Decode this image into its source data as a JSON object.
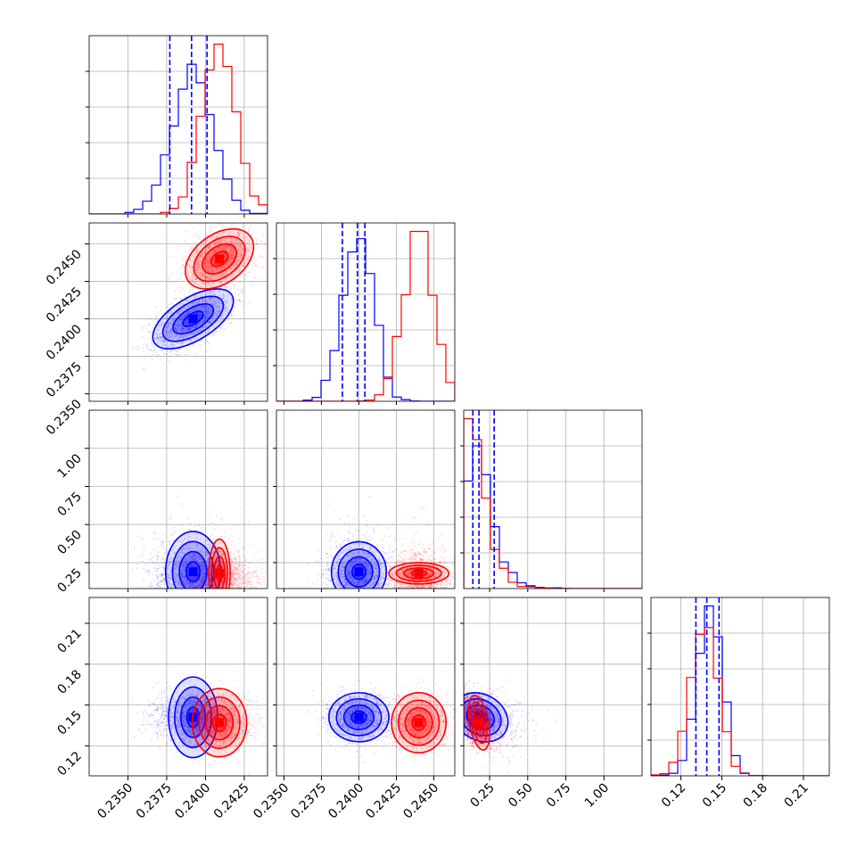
{
  "chart_data": {
    "type": "corner",
    "parameters": [
      {
        "ticks": [
          "0.2350",
          "0.2375",
          "0.2400",
          "0.2425"
        ],
        "tick_values": [
          0.235,
          0.2375,
          0.24,
          0.2425
        ],
        "range": [
          0.2325,
          0.244
        ]
      },
      {
        "ticks": [
          "0.2350",
          "0.2375",
          "0.2400",
          "0.2425",
          "0.2450"
        ],
        "tick_values": [
          0.235,
          0.2375,
          0.24,
          0.2425,
          0.245
        ],
        "range": [
          0.2345,
          0.2464
        ]
      },
      {
        "ticks": [
          "0.25",
          "0.50",
          "0.75",
          "1.00"
        ],
        "tick_values": [
          0.25,
          0.5,
          0.75,
          1.0
        ],
        "range": [
          0.08,
          1.25
        ]
      },
      {
        "ticks": [
          "0.12",
          "0.15",
          "0.18",
          "0.21"
        ],
        "tick_values": [
          0.12,
          0.15,
          0.18,
          0.21
        ],
        "range": [
          0.098,
          0.229
        ]
      }
    ],
    "series": [
      {
        "color": "#0000ff",
        "means": [
          0.2392,
          0.24,
          0.19,
          0.141
        ],
        "sds": [
          0.0013,
          0.001,
          0.09,
          0.009
        ],
        "corr": [
          [
            1,
            0.6,
            0,
            0
          ],
          [
            0.6,
            1,
            0,
            0
          ],
          [
            0,
            0,
            1,
            -0.2
          ],
          [
            0,
            0,
            -0.2,
            1
          ]
        ],
        "quantiles": [
          [
            0.2377,
            0.2391,
            0.2401
          ],
          [
            0.2389,
            0.2399,
            0.2404
          ],
          [
            0.14,
            0.18,
            0.28
          ],
          [
            0.131,
            0.139,
            0.148
          ]
        ]
      },
      {
        "color": "#ff0000",
        "means": [
          0.2409,
          0.244,
          0.18,
          0.137
        ],
        "sds": [
          0.0011,
          0.001,
          0.035,
          0.01
        ],
        "corr": [
          [
            1,
            0.4,
            0,
            0
          ],
          [
            0.4,
            1,
            0,
            0
          ],
          [
            0,
            0,
            1,
            -0.4
          ],
          [
            0,
            0,
            -0.4,
            1
          ]
        ]
      }
    ],
    "quantile_line_color": "#0000ff",
    "grid": true
  }
}
